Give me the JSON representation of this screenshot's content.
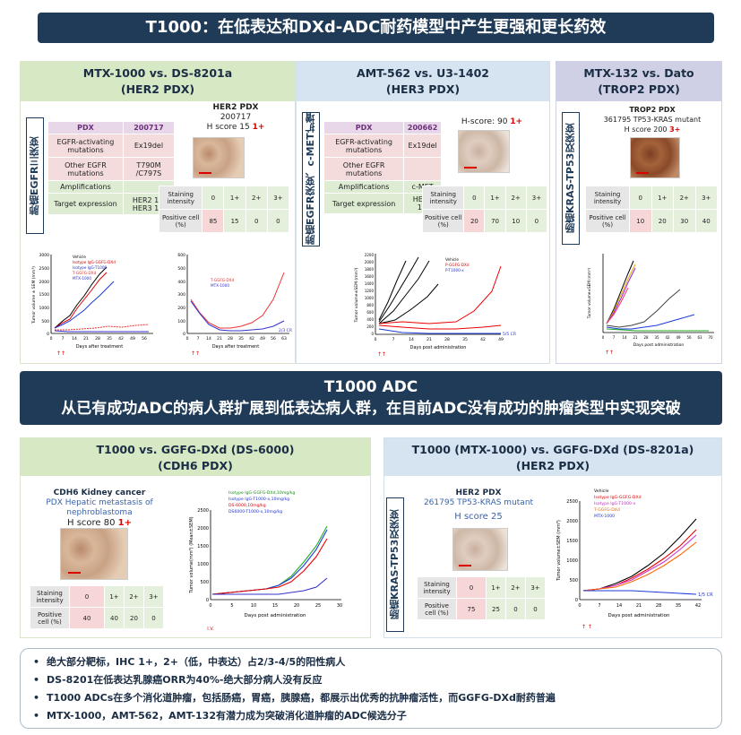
{
  "title_top": "T1000：在低表达和DXd-ADC耐药模型中产生更强和更长药效",
  "mid_banner": {
    "line1": "T1000 ADC",
    "line2": "从已有成功ADC的病人群扩展到低表达病人群，在目前ADC没有成功的肿瘤类型中实现突破"
  },
  "p1": {
    "title1": "MTX-1000 vs. DS-8201a",
    "title2": "(HER2 PDX)",
    "tag": "肺癌EGFR三突变",
    "table": [
      [
        "PDX",
        "200717"
      ],
      [
        "EGFR-activating mutations",
        "Ex19del"
      ],
      [
        "Other EGFR mutations",
        "T790M /C797S"
      ],
      [
        "Amplifications",
        ""
      ],
      [
        "Target expression",
        "HER2 1+ HER3 1+"
      ]
    ],
    "ihc": {
      "l1": "HER2 PDX",
      "l2": "200717",
      "l3": "H score 15 ",
      "l3red": "1+"
    },
    "score": {
      "r1": "Staining intensity",
      "r2": "Positive cell (%)",
      "cols": [
        "0",
        "1+",
        "2+",
        "3+"
      ],
      "vals": [
        "85",
        "15",
        "0",
        "0"
      ]
    },
    "chartA": {
      "legend": [
        "Vehicle",
        "Isotype IgG-GGFG-DXd",
        "Isotype IgG-T1000",
        "T-GGFG-DXd",
        "MTX-1000"
      ],
      "ylabel": "Tumor volume ± SEM (mm³)",
      "xlabel": "Days after treatment",
      "yticks": [
        "0",
        "500",
        "1000",
        "1500",
        "2000",
        "2500",
        "3000"
      ],
      "xticks": [
        "0",
        "7",
        "14",
        "21",
        "28",
        "35",
        "42",
        "49",
        "56"
      ]
    },
    "chartB": {
      "legend": [
        "T-GGFG-DXd",
        "MTX-1000"
      ],
      "xlabel": "Days after treatment",
      "yticks": [
        "0",
        "100",
        "200",
        "300",
        "400",
        "500",
        "600"
      ],
      "xticks": [
        "0",
        "7",
        "14",
        "21",
        "28",
        "35",
        "42",
        "49",
        "56",
        "63"
      ],
      "ann": "2/3 CR"
    }
  },
  "p2": {
    "title1": "AMT-562 vs. U3-1402",
    "title2": "(HER3 PDX)",
    "tag": "肺癌EGFR突变、c-MET扩增",
    "table": [
      [
        "PDX",
        "200662"
      ],
      [
        "EGFR-activating mutations",
        "Ex19del"
      ],
      [
        "Other EGFR mutations",
        ""
      ],
      [
        "Amplifications",
        "c-MET"
      ],
      [
        "Target expression",
        "HER3 1+"
      ]
    ],
    "ihc": {
      "l3": "H-score: 90 ",
      "l3red": "1+"
    },
    "score": {
      "r1": "Staining intensity",
      "r2": "Positive cell (%)",
      "cols": [
        "0",
        "1+",
        "2+",
        "3+"
      ],
      "vals": [
        "20",
        "70",
        "10",
        "0"
      ]
    },
    "chart": {
      "legend": [
        "Vehicle",
        "P-GGFG-DXd",
        "P-T1000-x"
      ],
      "ylabel": "Tumor volume±SEM (mm³)",
      "xlabel": "Days post administration",
      "yticks": [
        "0",
        "200",
        "400",
        "600",
        "800",
        "1000",
        "1200",
        "1400",
        "1600",
        "1800",
        "2000",
        "2200"
      ],
      "xticks": [
        "0",
        "7",
        "14",
        "21",
        "28",
        "35",
        "42",
        "49"
      ],
      "ann": "5/5 CR"
    }
  },
  "p3": {
    "title1": "MTX-132 vs. Dato",
    "title2": "(TROP2 PDX)",
    "tag": "肠癌KRAS-TP53双突变",
    "ihc": {
      "l1": "TROP2 PDX",
      "l2": "361795 TP53-KRAS mutant",
      "l3": "H score 200 ",
      "l3red": "3+"
    },
    "score": {
      "r1": "Staining intensity",
      "r2": "Positive cell (%)",
      "cols": [
        "0",
        "1+",
        "2+",
        "3+"
      ],
      "vals": [
        "10",
        "20",
        "30",
        "40"
      ]
    },
    "chart": {
      "ylabel": "Tumor volume±SEM (mm³)",
      "xlabel": "Days post administration",
      "xticks": [
        "0",
        "7",
        "14",
        "21",
        "28",
        "35",
        "42",
        "49",
        "56",
        "63",
        "70"
      ]
    }
  },
  "p4": {
    "title1": "T1000 vs. GGFG-DXd (DS-6000)",
    "title2": "(CDH6 PDX)",
    "ihc": {
      "l1": "CDH6 Kidney cancer",
      "l2": "PDX Hepatic metastasis of nephroblastoma",
      "l3": "H score 80 ",
      "l3red": "1+"
    },
    "score": {
      "r1": "Staining intensity",
      "r2": "Positive cell (%)",
      "cols": [
        "0",
        "1+",
        "2+",
        "3+"
      ],
      "vals": [
        "40",
        "40",
        "20",
        "0"
      ]
    },
    "chart": {
      "legend": [
        "Isotype IgG-GGFG-DXd,10mg/kg",
        "Isotype IgG-T1000-x,10mg/kg",
        "DS-6000,10mg/kg",
        "DS6000-T1000-x,10mg/kg"
      ],
      "ylabel": "Tumor volume(mm³) (Mean±SEM)",
      "xlabel": "Days post administration",
      "yticks": [
        "0",
        "500",
        "1000",
        "1500",
        "2000",
        "2500"
      ],
      "xticks": [
        "0",
        "5",
        "10",
        "15",
        "20",
        "25",
        "30"
      ],
      "ann": "I.V."
    }
  },
  "p5": {
    "title1": "T1000 (MTX-1000) vs. GGFG-DXd (DS-8201a)",
    "title2": "(HER2 PDX)",
    "tag": "肠癌KRAS-TP53双突变",
    "ihc": {
      "l1": "HER2 PDX",
      "l2": "261795 TP53-KRAS mutant",
      "l3": "H score 25"
    },
    "score": {
      "r1": "Staining intensity",
      "r2": "Positive cell (%)",
      "cols": [
        "0",
        "1+",
        "2+",
        "3+"
      ],
      "vals": [
        "75",
        "25",
        "0",
        "0"
      ]
    },
    "chart": {
      "legend": [
        "Vehicle",
        "Isotype IgG-GGFG-DXd",
        "Isotype IgG-T1000-x",
        "T-GGFG-DXd",
        "MTX-1000"
      ],
      "ylabel": "Tumor volume±SEM (mm³)",
      "xlabel": "Days post administration",
      "yticks": [
        "0",
        "500",
        "1000",
        "1500",
        "2000",
        "2500"
      ],
      "xticks": [
        "0",
        "7",
        "14",
        "21",
        "28",
        "35",
        "42"
      ],
      "ann": "1/5 CR"
    }
  },
  "notes": [
    "绝大部分靶标，IHC 1+，2+（低，中表达）占2/3-4/5的阳性病人",
    "DS-8201在低表达乳腺癌ORR为40%-绝大部分病人没有反应",
    "T1000 ADCs在多个消化道肿瘤，包括肠癌，胃癌，胰腺癌，都展示出优秀的抗肿瘤活性，而GGFG-DXd耐药普遍",
    "MTX-1000，AMT-562，AMT-132有潜力成为突破消化道肿瘤的ADC候选分子"
  ],
  "colors": {
    "navy": "#1f3b57",
    "green_head": "#d7e8c4",
    "blue_head": "#d5e4f0",
    "purple_head": "#cfd0e6"
  }
}
